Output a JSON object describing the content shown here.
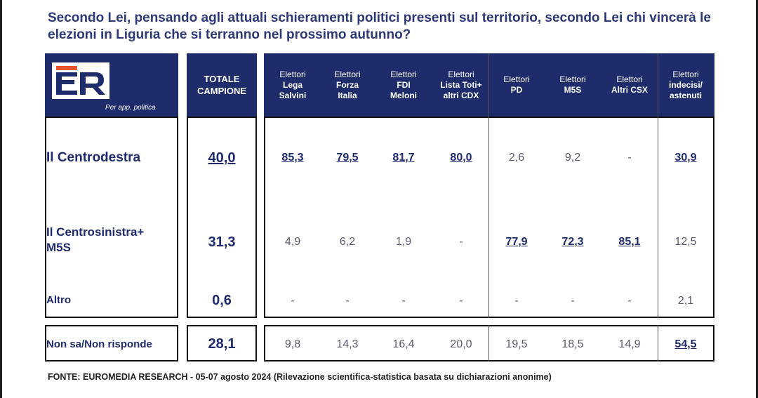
{
  "title": "Secondo Lei, pensando agli attuali schieramenti politici presenti sul territorio, secondo Lei chi vincerà le elezioni in Liguria che si terranno nel prossimo autunno?",
  "logo": {
    "letters": "ER",
    "caption": "Per app. politica"
  },
  "header": {
    "total": [
      "TOTALE",
      "CAMPIONE"
    ],
    "groups": [
      {
        "top": "Elettori",
        "sub": [
          "Lega",
          "Salvini"
        ]
      },
      {
        "top": "Elettori",
        "sub": [
          "Forza",
          "Italia"
        ]
      },
      {
        "top": "Elettori",
        "sub": [
          "FDI",
          "Meloni"
        ]
      },
      {
        "top": "Elettori",
        "sub": [
          "Lista Toti+",
          "altri CDX"
        ]
      },
      {
        "top": "Elettori",
        "sub": [
          "PD"
        ]
      },
      {
        "top": "Elettori",
        "sub": [
          "M5S"
        ]
      },
      {
        "top": "Elettori",
        "sub": [
          "Altri CSX"
        ]
      },
      {
        "top": "Elettori",
        "sub": [
          "indecisi/",
          "astenuti"
        ]
      }
    ]
  },
  "rows": [
    {
      "label": "Il Centrodestra",
      "total": "40,0",
      "values": [
        "85,3",
        "79,5",
        "81,7",
        "80,0",
        "2,6",
        "9,2",
        "-",
        "30,9"
      ],
      "underlined": [
        true,
        true,
        true,
        true,
        false,
        false,
        false,
        true
      ]
    },
    {
      "label": "Il Centrosinistra+ M5S",
      "total": "31,3",
      "values": [
        "4,9",
        "6,2",
        "1,9",
        "-",
        "77,9",
        "72,3",
        "85,1",
        "12,5"
      ],
      "underlined": [
        false,
        false,
        false,
        false,
        true,
        true,
        true,
        false
      ]
    },
    {
      "label": "Altro",
      "total": "0,6",
      "values": [
        "-",
        "-",
        "-",
        "-",
        "-",
        "-",
        "-",
        "2,1"
      ],
      "underlined": [
        false,
        false,
        false,
        false,
        false,
        false,
        false,
        false
      ]
    }
  ],
  "footer_row": {
    "label": "Non sa/Non risponde",
    "total": "28,1",
    "values": [
      "9,8",
      "14,3",
      "16,4",
      "20,0",
      "19,5",
      "18,5",
      "14,9",
      "54,5"
    ],
    "underlined": [
      false,
      false,
      false,
      false,
      false,
      false,
      false,
      true
    ]
  },
  "source": "FONTE: EUROMEDIA RESEARCH - 05-07 agosto 2024 (Rilevazione scientifica-statistica basata su dichiarazioni anonime)"
}
